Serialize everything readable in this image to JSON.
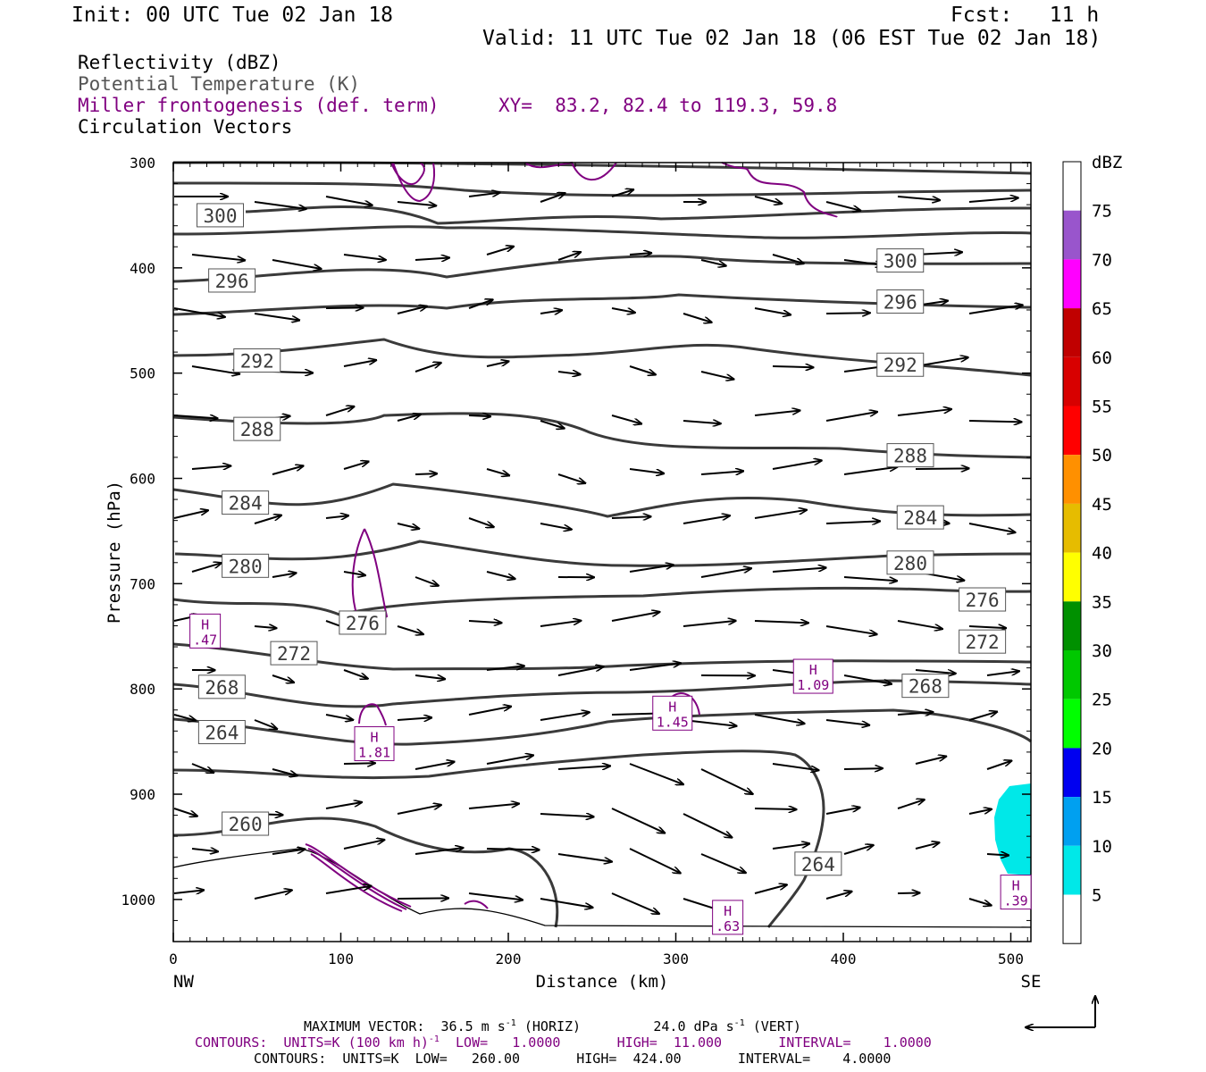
{
  "header": {
    "init": "Init: 00 UTC Tue 02 Jan 18",
    "fcst": "Fcst:   11 h",
    "valid": "Valid: 11 UTC Tue 02 Jan 18 (06 EST Tue 02 Jan 18)"
  },
  "legend": {
    "reflectivity": "Reflectivity (dBZ)",
    "theta": "Potential Temperature (K)",
    "frontogenesis": "Miller frontogenesis (def. term)",
    "xy": "XY=  83.2, 82.4 to 119.3, 59.8",
    "vectors": "Circulation Vectors"
  },
  "colors": {
    "theta": "#3a3a3a",
    "frontogenesis": "#800080",
    "reflectivity_fill": "#00e8e8"
  },
  "chart_data": {
    "type": "contour",
    "xlabel": "Distance (km)",
    "ylabel": "Pressure (hPa)",
    "xlim": [
      0,
      512
    ],
    "ylim": [
      1040,
      300
    ],
    "x_ticks": [
      0,
      100,
      200,
      300,
      400,
      500
    ],
    "y_ticks": [
      300,
      400,
      500,
      600,
      700,
      800,
      900,
      1000
    ],
    "x_end_labels": {
      "left": "NW",
      "right": "SE"
    },
    "theta_labels": [
      {
        "value": "300",
        "x": 28,
        "p": 350
      },
      {
        "value": "296",
        "x": 35,
        "p": 412
      },
      {
        "value": "292",
        "x": 50,
        "p": 488
      },
      {
        "value": "288",
        "x": 50,
        "p": 553
      },
      {
        "value": "284",
        "x": 43,
        "p": 623
      },
      {
        "value": "280",
        "x": 43,
        "p": 683
      },
      {
        "value": "276",
        "x": 113,
        "p": 737
      },
      {
        "value": "272",
        "x": 72,
        "p": 766
      },
      {
        "value": "268",
        "x": 29,
        "p": 798
      },
      {
        "value": "264",
        "x": 29,
        "p": 841
      },
      {
        "value": "260",
        "x": 43,
        "p": 928
      },
      {
        "value": "300",
        "x": 434,
        "p": 393
      },
      {
        "value": "296",
        "x": 434,
        "p": 432
      },
      {
        "value": "292",
        "x": 434,
        "p": 492
      },
      {
        "value": "288",
        "x": 440,
        "p": 578
      },
      {
        "value": "284",
        "x": 446,
        "p": 637
      },
      {
        "value": "280",
        "x": 440,
        "p": 680
      },
      {
        "value": "276",
        "x": 483,
        "p": 715
      },
      {
        "value": "272",
        "x": 483,
        "p": 755
      },
      {
        "value": "268",
        "x": 449,
        "p": 797
      },
      {
        "value": "264",
        "x": 385,
        "p": 966
      }
    ],
    "frontogenesis_maxima": [
      {
        "label": "H",
        "value": ".47",
        "x": 19,
        "p": 745
      },
      {
        "label": "H",
        "value": "1.81",
        "x": 120,
        "p": 852
      },
      {
        "label": "H",
        "value": "1.45",
        "x": 298,
        "p": 823
      },
      {
        "label": "H",
        "value": "1.09",
        "x": 382,
        "p": 788
      },
      {
        "label": "H",
        "value": ".63",
        "x": 331,
        "p": 1017
      },
      {
        "label": "H",
        "value": ".39",
        "x": 503,
        "p": 993
      }
    ],
    "vector_scale": {
      "horiz_ms": 36.5,
      "vert_dpas": 24.0
    }
  },
  "colorbar": {
    "unit": "dBZ",
    "levels": [
      "5",
      "10",
      "15",
      "20",
      "25",
      "30",
      "35",
      "40",
      "45",
      "50",
      "55",
      "60",
      "65",
      "70",
      "75"
    ],
    "colors": [
      "#ffffff",
      "#00e8e8",
      "#00a0f0",
      "#0000f0",
      "#00ff00",
      "#00c800",
      "#009000",
      "#ffff00",
      "#e6bc00",
      "#ff9000",
      "#ff0000",
      "#d80000",
      "#c00000",
      "#ff00ff",
      "#9955cc",
      "#ffffff"
    ]
  },
  "footer": {
    "max_vector": "MAXIMUM VECTOR:  36.5 m s",
    "max_vector_exp": "-1",
    "max_vector_mid": " (HORIZ)         24.0 dPa s",
    "max_vector_exp2": "-1",
    "max_vector_end": " (VERT)",
    "contours1_a": "CONTOURS:  UNITS=K (100 km h)",
    "contours1_exp": "-1",
    "contours1_b": "  LOW=   1.0000       HIGH=  11.000       INTERVAL=    1.0000",
    "contours2": "CONTOURS:  UNITS=K  LOW=   260.00       HIGH=  424.00       INTERVAL=    4.0000"
  }
}
